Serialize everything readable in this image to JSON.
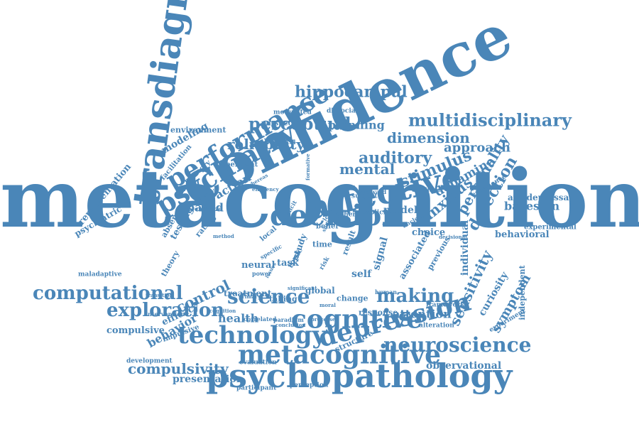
{
  "colors": {
    "word": "#4a86b8",
    "background": "#ffffff"
  },
  "words": [
    "metacognition",
    "confidence",
    "transdiagnostic",
    "psychiatry",
    "performance",
    "affective",
    "decision",
    "psychopathology",
    "metacognitive",
    "cognitive",
    "technology",
    "depression",
    "neuroscience",
    "computational",
    "science",
    "exploration",
    "making",
    "multidisciplinary",
    "hippocampal",
    "perceptual",
    "reliability",
    "auditory",
    "mental",
    "stimulus",
    "dimension",
    "approach",
    "personality",
    "dopamine",
    "anxious",
    "detection",
    "bayesian",
    "antidepressant",
    "experimental",
    "behavioral",
    "choice",
    "sensitivity",
    "symptom",
    "curiosity",
    "individual",
    "independent",
    "observational",
    "compulsivity",
    "presentation",
    "compulsive",
    "behavior",
    "control",
    "health",
    "attention",
    "planning",
    "modeling",
    "environment",
    "representation",
    "psychiatric",
    "action",
    "based",
    "testing",
    "model",
    "task",
    "self",
    "change",
    "response",
    "global",
    "efficacy",
    "impulsive",
    "development",
    "participant",
    "perception",
    "evaluation",
    "structure",
    "associated",
    "previous",
    "facilitation",
    "memory",
    "dependent",
    "modulated",
    "dissociable",
    "perspective",
    "hierarchical",
    "rating",
    "energize",
    "absence",
    "theory",
    "maladaptive",
    "intervention",
    "treatment",
    "neural",
    "topic",
    "signal",
    "time",
    "belief",
    "local",
    "study",
    "subject",
    "explicit",
    "other",
    "framework",
    "alteration",
    "experiment",
    "experience",
    "decisional",
    "condition",
    "reward",
    "unclear",
    "efficiency",
    "power",
    "taking",
    "human",
    "correlated",
    "processes",
    "significant",
    "result",
    "risk",
    "level",
    "paradigm",
    "conclusion",
    "primary",
    "moral",
    "transition",
    "cognition",
    "specific",
    "issues",
    "whereas",
    "increase",
    "deficit",
    "formative",
    "method",
    "shift"
  ]
}
